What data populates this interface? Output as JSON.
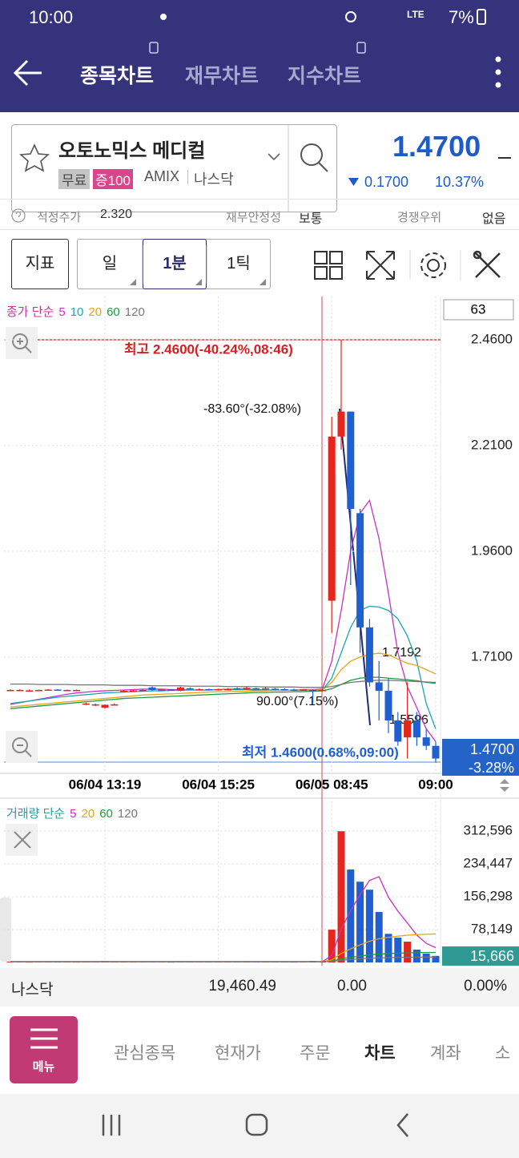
{
  "status_bar": {
    "time": "10:00",
    "network": "LTE",
    "battery": "7%"
  },
  "header": {
    "tabs": [
      "종목차트",
      "재무차트",
      "지수차트"
    ]
  },
  "stock": {
    "name": "오토노믹스 메디컬",
    "tags": [
      "무료",
      "증100"
    ],
    "ticker": "AMIX",
    "market": "나스닥",
    "price": "1.4700",
    "change": "0.1700",
    "change_pct": "10.37%"
  },
  "info": {
    "fair_price_label": "적정주가",
    "fair_price": "2.320",
    "stability_label": "재무안정성",
    "stability": "보통",
    "advantage_label": "경쟁우위",
    "advantage": "없음"
  },
  "toolbar": {
    "indicator": "지표",
    "periods": [
      "일",
      "1분",
      "1틱"
    ]
  },
  "chart_data": [
    {
      "type": "candlestick",
      "legend_title": "종가 단순",
      "legend_color": "#c0369b",
      "count": "63",
      "categories": [
        null,
        null,
        null,
        null,
        null,
        null,
        null,
        null,
        null,
        null,
        "06/04 13:19",
        null,
        null,
        null,
        null,
        null,
        null,
        null,
        null,
        null,
        null,
        null,
        "06/04 15:25",
        null,
        null,
        null,
        null,
        null,
        null,
        null,
        null,
        null,
        null,
        null,
        "06/05 08:45",
        null,
        null,
        null,
        null,
        null,
        null,
        null,
        null,
        null,
        null,
        "09:00"
      ],
      "ohlc": [
        [
          1.632,
          1.634,
          1.63,
          1.632
        ],
        [
          1.632,
          1.634,
          1.63,
          1.632
        ],
        [
          1.631,
          1.633,
          1.629,
          1.631
        ],
        [
          1.632,
          1.633,
          1.63,
          1.632
        ],
        [
          1.632,
          1.634,
          1.631,
          1.633
        ],
        [
          1.633,
          1.634,
          1.631,
          1.632
        ],
        [
          1.632,
          1.633,
          1.63,
          1.632
        ],
        [
          1.632,
          1.633,
          1.631,
          1.632
        ],
        [
          1.6,
          1.602,
          1.596,
          1.6
        ],
        [
          1.598,
          1.6,
          1.594,
          1.598
        ],
        [
          1.59,
          1.598,
          1.588,
          1.597
        ],
        [
          1.597,
          1.6,
          1.595,
          1.598
        ],
        [
          1.628,
          1.632,
          1.626,
          1.63
        ],
        [
          1.63,
          1.632,
          1.628,
          1.631
        ],
        [
          1.631,
          1.633,
          1.629,
          1.632
        ],
        [
          1.638,
          1.64,
          1.63,
          1.632
        ],
        [
          1.632,
          1.634,
          1.631,
          1.633
        ],
        [
          1.633,
          1.634,
          1.631,
          1.632
        ],
        [
          1.63,
          1.64,
          1.629,
          1.638
        ],
        [
          1.636,
          1.638,
          1.633,
          1.635
        ],
        [
          1.634,
          1.636,
          1.632,
          1.634
        ],
        [
          1.634,
          1.635,
          1.632,
          1.633
        ],
        [
          1.633,
          1.635,
          1.631,
          1.634
        ],
        [
          1.634,
          1.636,
          1.632,
          1.634
        ],
        [
          1.636,
          1.638,
          1.632,
          1.634
        ],
        [
          1.633,
          1.64,
          1.632,
          1.637
        ],
        [
          1.636,
          1.638,
          1.633,
          1.635
        ],
        [
          1.635,
          1.64,
          1.633,
          1.636
        ],
        [
          1.635,
          1.637,
          1.633,
          1.634
        ],
        [
          1.634,
          1.636,
          1.632,
          1.633
        ],
        [
          1.633,
          1.635,
          1.631,
          1.632
        ],
        [
          1.632,
          1.634,
          1.63,
          1.633
        ],
        [
          1.632,
          1.633,
          1.6,
          1.63
        ],
        [
          1.63,
          1.634,
          1.628,
          1.632
        ],
        [
          1.843,
          2.278,
          1.767,
          2.231
        ],
        [
          2.231,
          2.46,
          2.2,
          2.29
        ],
        [
          2.29,
          2.29,
          1.88,
          2.06
        ],
        [
          2.05,
          2.06,
          1.72,
          1.78
        ],
        [
          1.78,
          1.8,
          1.64,
          1.65
        ],
        [
          1.65,
          1.7,
          1.56,
          1.63
        ],
        [
          1.63,
          1.66,
          1.53,
          1.56
        ],
        [
          1.56,
          1.58,
          1.5,
          1.51
        ],
        [
          1.52,
          1.65,
          1.47,
          1.56
        ],
        [
          1.56,
          1.58,
          1.5,
          1.52
        ],
        [
          1.52,
          1.54,
          1.49,
          1.5
        ],
        [
          1.5,
          1.51,
          1.46,
          1.47
        ]
      ],
      "up_color": "#e3261e",
      "down_color": "#1f5fd0",
      "series": [
        {
          "name": "5",
          "color": "#c633c0",
          "values": [
            1.598,
            1.602,
            1.606,
            1.61,
            1.614,
            1.618,
            1.622,
            1.625,
            1.627,
            1.629,
            1.63,
            1.631,
            1.632,
            1.633,
            1.634,
            1.634,
            1.634,
            1.633,
            1.633,
            1.632,
            1.632,
            1.632,
            1.633,
            1.634,
            1.634,
            1.634,
            1.633,
            1.632,
            1.631,
            1.631,
            1.632,
            1.633,
            1.633,
            1.634,
            1.7,
            1.82,
            1.96,
            2.05,
            2.08,
            1.99,
            1.86,
            1.72,
            1.64,
            1.59,
            1.54,
            1.51
          ]
        },
        {
          "name": "10",
          "color": "#1aa5b5",
          "values": [
            1.6,
            1.603,
            1.606,
            1.609,
            1.612,
            1.615,
            1.617,
            1.619,
            1.621,
            1.623,
            1.625,
            1.626,
            1.627,
            1.628,
            1.629,
            1.63,
            1.63,
            1.631,
            1.631,
            1.632,
            1.632,
            1.632,
            1.633,
            1.633,
            1.633,
            1.633,
            1.632,
            1.632,
            1.632,
            1.632,
            1.631,
            1.631,
            1.631,
            1.631,
            1.66,
            1.72,
            1.78,
            1.82,
            1.83,
            1.828,
            1.82,
            1.8,
            1.76,
            1.7,
            1.6,
            1.54
          ]
        },
        {
          "name": "20",
          "color": "#e8a317",
          "values": [
            1.592,
            1.594,
            1.596,
            1.598,
            1.6,
            1.602,
            1.604,
            1.606,
            1.608,
            1.61,
            1.612,
            1.614,
            1.616,
            1.618,
            1.62,
            1.621,
            1.622,
            1.623,
            1.624,
            1.625,
            1.626,
            1.627,
            1.628,
            1.628,
            1.629,
            1.629,
            1.63,
            1.63,
            1.631,
            1.631,
            1.632,
            1.632,
            1.632,
            1.632,
            1.65,
            1.68,
            1.7,
            1.71,
            1.716,
            1.719,
            1.715,
            1.705,
            1.695,
            1.69,
            1.68,
            1.67
          ]
        },
        {
          "name": "60",
          "color": "#1e9a3c",
          "values": [
            1.588,
            1.59,
            1.592,
            1.594,
            1.596,
            1.598,
            1.6,
            1.602,
            1.604,
            1.606,
            1.608,
            1.61,
            1.612,
            1.613,
            1.614,
            1.615,
            1.616,
            1.617,
            1.618,
            1.619,
            1.62,
            1.621,
            1.622,
            1.623,
            1.624,
            1.625,
            1.626,
            1.626,
            1.627,
            1.627,
            1.628,
            1.628,
            1.629,
            1.63,
            1.635,
            1.645,
            1.655,
            1.66,
            1.662,
            1.662,
            1.66,
            1.658,
            1.656,
            1.654,
            1.65,
            1.648
          ]
        },
        {
          "name": "120",
          "color": "#777777",
          "values": [
            1.646,
            1.646,
            1.646,
            1.645,
            1.645,
            1.645,
            1.645,
            1.644,
            1.644,
            1.644,
            1.644,
            1.643,
            1.643,
            1.643,
            1.643,
            1.642,
            1.642,
            1.642,
            1.642,
            1.641,
            1.641,
            1.641,
            1.641,
            1.64,
            1.64,
            1.64,
            1.64,
            1.639,
            1.639,
            1.639,
            1.639,
            1.638,
            1.638,
            1.638,
            1.64,
            1.645,
            1.65,
            1.652,
            1.654,
            1.655,
            1.655,
            1.654,
            1.653,
            1.652,
            1.651,
            1.65
          ]
        }
      ],
      "ylim": [
        1.435,
        2.562
      ],
      "yticks": [
        {
          "value": 2.46,
          "label": "2.4600"
        },
        {
          "value": 2.21,
          "label": "2.2100"
        },
        {
          "value": 1.96,
          "label": "1.9600"
        },
        {
          "value": 1.71,
          "label": "1.7100"
        }
      ],
      "grid": true,
      "annotations": {
        "high": "최고 2.4600(-40.24%,08:46)",
        "drawing_angle": "-83.60°(-32.08%)",
        "ma_value": "1.7192",
        "flat_angle": "90.00°(7.15%)",
        "ma_value_2": "1.5596",
        "low": "최저 1.4600(0.68%,09:00)"
      },
      "last_price": "1.4700",
      "last_change": "-3.28%"
    },
    {
      "type": "bar",
      "legend_title": "거래량 단순",
      "legend_color": "#2a9d9d",
      "values": [
        1800,
        1500,
        1200,
        2100,
        1600,
        1400,
        1900,
        1300,
        2500,
        1700,
        3200,
        1500,
        2200,
        1400,
        1600,
        2800,
        1500,
        1300,
        3000,
        1700,
        1500,
        1400,
        2000,
        1600,
        2400,
        2900,
        1800,
        2300,
        1500,
        1400,
        1300,
        1600,
        3500,
        2000,
        78000,
        312000,
        221000,
        192000,
        173000,
        120000,
        68000,
        59000,
        49500,
        30500,
        21000,
        15666
      ],
      "series": [
        {
          "name": "5",
          "color": "#c633c0",
          "values": [
            1800,
            1800,
            1800,
            1800,
            1800,
            1800,
            1800,
            1800,
            1800,
            1800,
            1800,
            1800,
            1800,
            1800,
            1800,
            1800,
            1800,
            1800,
            1800,
            1800,
            1800,
            1800,
            1800,
            1800,
            1800,
            1800,
            1800,
            1800,
            1800,
            1800,
            1800,
            1800,
            1800,
            1800,
            16000,
            79000,
            123000,
            161000,
            195000,
            204000,
            155000,
            122000,
            94000,
            65000,
            45500,
            35000
          ]
        },
        {
          "name": "20",
          "color": "#e8a317",
          "values": [
            1900,
            1900,
            1900,
            1900,
            1900,
            1900,
            1900,
            1900,
            1900,
            1900,
            1900,
            1900,
            1900,
            1900,
            1900,
            1900,
            1900,
            1900,
            1900,
            1900,
            1900,
            1900,
            1900,
            1900,
            1900,
            1900,
            1900,
            1900,
            1900,
            1900,
            1900,
            1900,
            1900,
            1900,
            5800,
            21400,
            32400,
            41900,
            50500,
            56400,
            59700,
            62500,
            64800,
            66200,
            67100,
            67800
          ]
        },
        {
          "name": "60",
          "color": "#1e9a3c",
          "values": [
            1950,
            1950,
            1950,
            1950,
            1950,
            1950,
            1950,
            1950,
            1950,
            1950,
            1950,
            1950,
            1950,
            1950,
            1950,
            1950,
            1950,
            1950,
            1950,
            1950,
            1950,
            1950,
            1950,
            1950,
            1950,
            1950,
            1950,
            1950,
            1950,
            1950,
            1950,
            1950,
            1950,
            1950,
            3200,
            8400,
            12000,
            15200,
            18000,
            20000,
            21100,
            22000,
            22800,
            23300,
            23600,
            23800
          ]
        },
        {
          "name": "120",
          "color": "#777777",
          "values": [
            1950,
            1950,
            1950,
            1950,
            1950,
            1950,
            1950,
            1950,
            1950,
            1950,
            1950,
            1950,
            1950,
            1950,
            1950,
            1950,
            1950,
            1950,
            1950,
            1950,
            1950,
            1950,
            1950,
            1950,
            1950,
            1950,
            1950,
            1950,
            1950,
            1950,
            1950,
            1950,
            1950,
            1950,
            2600,
            5200,
            7000,
            8600,
            10000,
            11000,
            11500,
            12000,
            12400,
            12600,
            12800,
            12900
          ]
        }
      ],
      "ylim": [
        0,
        383000
      ],
      "yticks": [
        {
          "value": 312596,
          "label": "312,596"
        },
        {
          "value": 234447,
          "label": "234,447"
        },
        {
          "value": 156298,
          "label": "156,298"
        },
        {
          "value": 78149,
          "label": "78,149"
        }
      ],
      "grid": true,
      "current_label": "15,666"
    }
  ],
  "footer_row": {
    "market": "나스닥",
    "index": "19,460.49",
    "change": "0.00",
    "change_pct": "0.00%"
  },
  "nav": {
    "menu": "메뉴",
    "items": [
      "관심종목",
      "현재가",
      "주문",
      "차트",
      "계좌",
      "소"
    ]
  }
}
